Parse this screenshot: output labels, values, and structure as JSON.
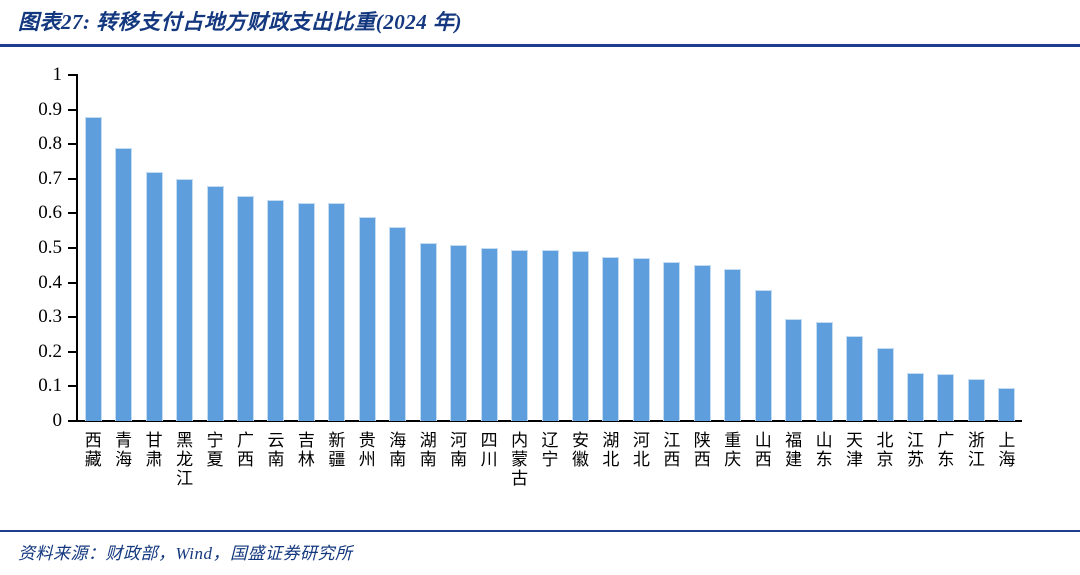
{
  "header": {
    "title": "图表27: 转移支付占地方财政支出比重(2024 年)"
  },
  "footer": {
    "source_text": "资料来源：财政部，Wind，国盛证券研究所"
  },
  "colors": {
    "accent_navy": "#1F3D8F",
    "title_text": "#14387F",
    "bar_fill": "#5E9EDC",
    "bar_edge": "#C4DCF2",
    "axis": "#000000"
  },
  "chart_data": {
    "type": "bar",
    "title": "转移支付占地方财政支出比重(2024年)",
    "xlabel": "",
    "ylabel": "",
    "ylim": [
      0,
      1
    ],
    "grid": false,
    "legend": false,
    "y_ticks": [
      "0",
      "0.1",
      "0.2",
      "0.3",
      "0.4",
      "0.5",
      "0.6",
      "0.7",
      "0.8",
      "0.9",
      "1"
    ],
    "categories": [
      "西藏",
      "青海",
      "甘肃",
      "黑龙江",
      "宁夏",
      "广西",
      "云南",
      "吉林",
      "新疆",
      "贵州",
      "海南",
      "湖南",
      "河南",
      "四川",
      "内蒙古",
      "辽宁",
      "安徽",
      "湖北",
      "河北",
      "江西",
      "陕西",
      "重庆",
      "山西",
      "福建",
      "山东",
      "天津",
      "北京",
      "江苏",
      "广东",
      "浙江",
      "上海"
    ],
    "values": [
      0.88,
      0.79,
      0.72,
      0.7,
      0.68,
      0.65,
      0.64,
      0.63,
      0.63,
      0.59,
      0.56,
      0.515,
      0.51,
      0.5,
      0.495,
      0.495,
      0.49,
      0.475,
      0.47,
      0.46,
      0.45,
      0.44,
      0.38,
      0.295,
      0.285,
      0.245,
      0.21,
      0.14,
      0.135,
      0.12,
      0.095
    ]
  }
}
